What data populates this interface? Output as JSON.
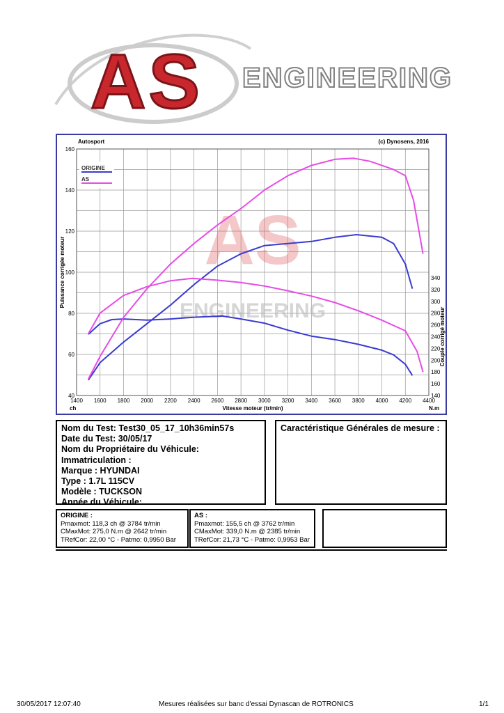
{
  "logo": {
    "letters": "AS",
    "wordmark": "ENGINEERING"
  },
  "chart_data": {
    "type": "line",
    "header_left": "Autosport",
    "header_right": "(c) Dynosens, 2016",
    "xlabel": "Vitesse moteur (tr/min)",
    "ylabel_left": "Puissance corrigée moteur",
    "ylabel_right": "Couple corrigé moteur",
    "unit_left": "ch",
    "unit_right": "N.m",
    "xlim": [
      1400,
      4400
    ],
    "ylim_left": [
      40,
      160
    ],
    "ylim_right": [
      140,
      340
    ],
    "x_ticks": [
      1400,
      1600,
      1800,
      2000,
      2200,
      2400,
      2600,
      2800,
      3000,
      3200,
      3400,
      3600,
      3800,
      4000,
      4200,
      4400
    ],
    "y_ticks_left": [
      40,
      60,
      80,
      100,
      120,
      140,
      160
    ],
    "y_ticks_right": [
      140,
      160,
      180,
      200,
      220,
      240,
      260,
      280,
      300,
      320,
      340
    ],
    "grid": true,
    "legend": [
      {
        "name": "ORIGINE",
        "color": "#3a3ad0"
      },
      {
        "name": "AS",
        "color": "#e64ce6"
      }
    ],
    "series": [
      {
        "name": "ORIGINE",
        "kind": "power",
        "axis": "left",
        "color": "#3a3ad0",
        "x": [
          1500,
          1600,
          1800,
          2000,
          2200,
          2400,
          2600,
          2800,
          3000,
          3200,
          3400,
          3600,
          3784,
          4000,
          4100,
          4200,
          4260
        ],
        "y": [
          47.5,
          56,
          66,
          75,
          84,
          94,
          103,
          109,
          113,
          114,
          115,
          117,
          118.3,
          117,
          114,
          104,
          92
        ]
      },
      {
        "name": "ORIGINE",
        "kind": "torque",
        "axis": "right",
        "color": "#3a3ad0",
        "x": [
          1500,
          1600,
          1700,
          1800,
          2000,
          2200,
          2400,
          2642,
          2800,
          3000,
          3200,
          3400,
          3600,
          3800,
          4000,
          4100,
          4200,
          4260
        ],
        "y": [
          244,
          262,
          269,
          270,
          268,
          270,
          273,
          275,
          270,
          263,
          251,
          241,
          235,
          227,
          217,
          209,
          193,
          174
        ]
      },
      {
        "name": "AS",
        "kind": "power",
        "axis": "left",
        "color": "#e64ce6",
        "x": [
          1500,
          1600,
          1800,
          2000,
          2200,
          2400,
          2600,
          2800,
          3000,
          3200,
          3400,
          3600,
          3762,
          3900,
          4000,
          4100,
          4200,
          4270,
          4350
        ],
        "y": [
          48,
          59,
          78,
          92,
          104,
          114,
          123,
          131,
          140,
          147,
          152,
          155,
          155.5,
          154,
          152,
          150,
          147,
          135,
          109
        ]
      },
      {
        "name": "AS",
        "kind": "torque",
        "axis": "right",
        "color": "#e64ce6",
        "x": [
          1500,
          1600,
          1800,
          2000,
          2200,
          2385,
          2600,
          2800,
          3000,
          3200,
          3400,
          3600,
          3800,
          4000,
          4200,
          4300,
          4350
        ],
        "y": [
          245,
          280,
          310,
          325,
          335,
          339,
          336,
          332,
          326,
          318,
          309,
          298,
          284,
          268,
          250,
          215,
          180
        ]
      }
    ]
  },
  "info": {
    "test_name": "Nom du Test: Test30_05_17_10h36min57s",
    "test_date": "Date du Test: 30/05/17",
    "owner": "Nom du Propriétaire du Véhicule:",
    "plate": "Immatriculation   :",
    "brand": "Marque  : HYUNDAI",
    "type": "Type  : 1.7L  115CV",
    "model": "Modèle  : TUCKSON",
    "year": "Année du Véhicule:"
  },
  "characteristics_title": "Caractéristique Générales de mesure :",
  "measure_origine": {
    "title": "ORIGINE :",
    "pmax": "Pmaxmot: 118,3 ch @ 3784 tr/min",
    "cmax": "CMaxMot: 275,0 N.m @ 2642 tr/min",
    "tref": "TRefCor: 22,00 °C - Patmo: 0,9950 Bar"
  },
  "measure_as": {
    "title": "AS :",
    "pmax": "Pmaxmot: 155,5 ch @ 3762 tr/min",
    "cmax": "CMaxMot: 339,0 N.m @ 2385 tr/min",
    "tref": "TRefCor: 21,73 °C - Patmo: 0,9953 Bar"
  },
  "footer": {
    "datetime": "30/05/2017 12:07:40",
    "note": "Mesures réalisées sur banc d'essai Dynascan de ROTRONICS",
    "page": "1/1"
  }
}
